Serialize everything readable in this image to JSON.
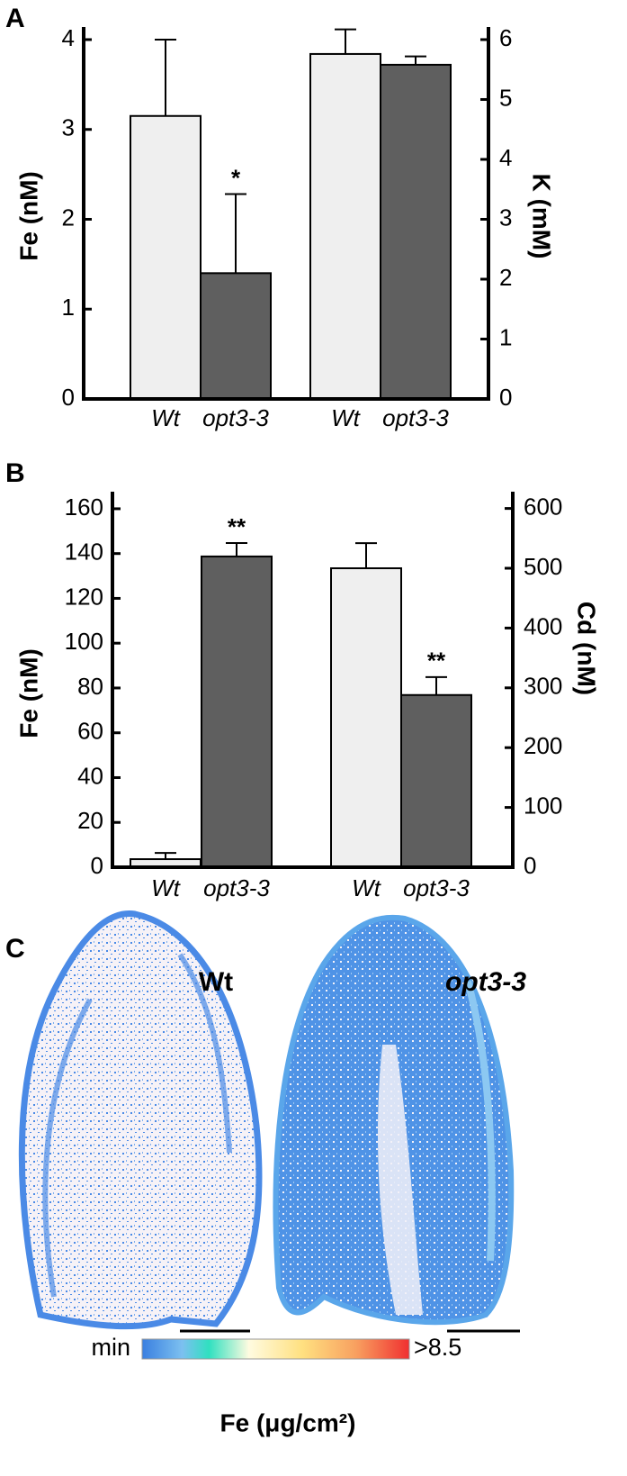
{
  "chart_data": [
    {
      "type": "bar",
      "label": "A",
      "categories": [
        "Wt",
        "opt3-3",
        "Wt",
        "opt3-3"
      ],
      "colors": [
        "#efefef",
        "#5f5f5f",
        "#efefef",
        "#5f5f5f"
      ],
      "ylabel": "Fe (nM)",
      "y2label": "K (mM)",
      "ylim": [
        0,
        4.1
      ],
      "yticks": [
        0,
        1,
        2,
        3,
        4
      ],
      "y2lim": [
        0,
        6.15
      ],
      "y2ticks": [
        0,
        1,
        2,
        3,
        4,
        5,
        6
      ],
      "series": [
        {
          "values": [
            3.15,
            1.4,
            null,
            null
          ],
          "errors": [
            0.85,
            0.88,
            null,
            null
          ],
          "significance": [
            null,
            "*",
            null,
            null
          ]
        },
        {
          "axis": "y2",
          "values": [
            null,
            null,
            5.76,
            5.58
          ],
          "errors": [
            null,
            null,
            0.41,
            0.14
          ]
        }
      ]
    },
    {
      "type": "bar",
      "label": "B",
      "categories": [
        "Wt",
        "opt3-3",
        "Wt",
        "opt3-3"
      ],
      "colors": [
        "#efefef",
        "#5f5f5f",
        "#efefef",
        "#5f5f5f"
      ],
      "ylabel": "Fe (nM)",
      "y2label": "Cd (nM)",
      "ylim": [
        0,
        166
      ],
      "yticks": [
        0,
        20,
        40,
        60,
        80,
        100,
        120,
        140,
        160
      ],
      "y2lim": [
        0,
        622
      ],
      "y2ticks": [
        0,
        100,
        200,
        300,
        400,
        500,
        600
      ],
      "series": [
        {
          "values": [
            3.6,
            138.7,
            null,
            null
          ],
          "errors": [
            2.8,
            6,
            null,
            null
          ],
          "significance": [
            null,
            "**",
            null,
            null
          ]
        },
        {
          "axis": "y2",
          "values": [
            null,
            null,
            500,
            288
          ],
          "errors": [
            null,
            null,
            42,
            30
          ],
          "significance": [
            null,
            null,
            null,
            "**"
          ]
        }
      ]
    }
  ],
  "panel_c": {
    "label": "C",
    "left_leaf": "Wt",
    "right_leaf": "opt3-3",
    "colorbar_min": "min",
    "colorbar_max": ">8.5",
    "colorbar_title": "Fe (μg/cm²)"
  }
}
